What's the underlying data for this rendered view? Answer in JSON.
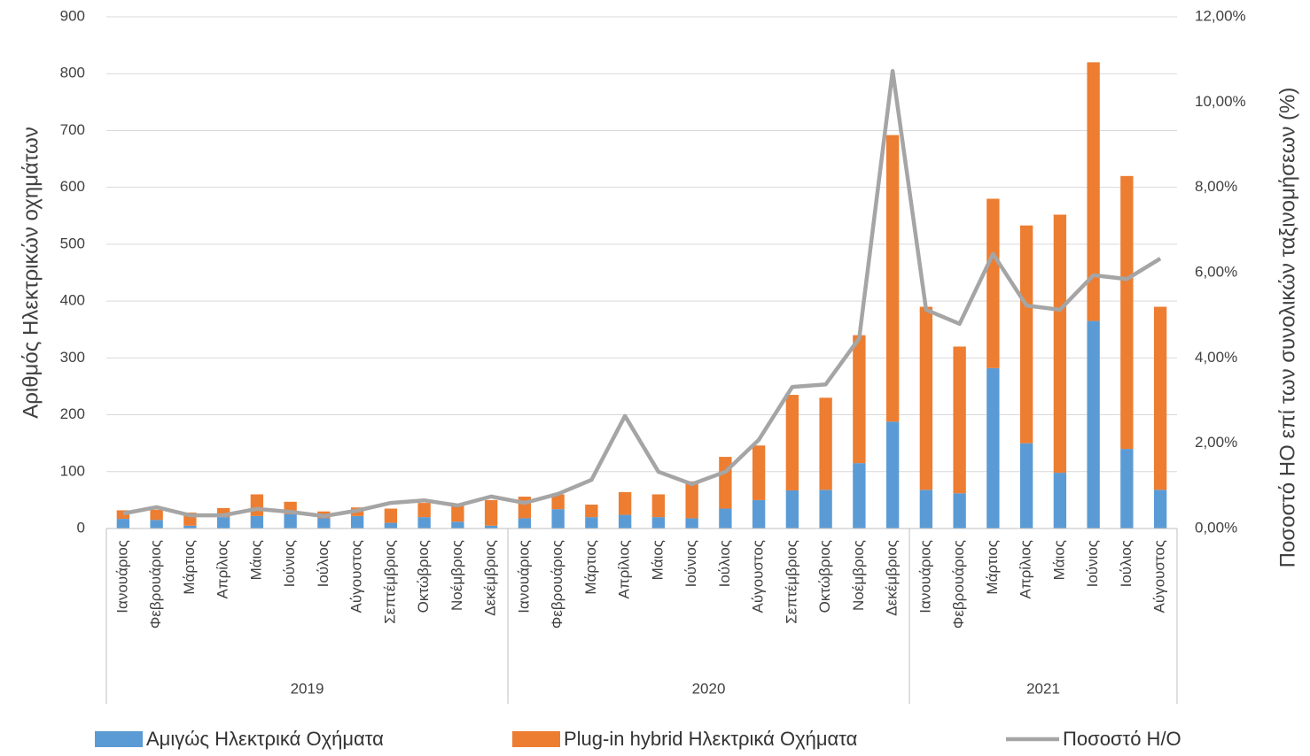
{
  "chart_data": {
    "type": "bar-line",
    "y_label": "Αριθμός Ηλεκτρικών οχημάτων",
    "y2_label": "Ποσοστό ΗΟ επί των συνολικών ταξινομήσεων (%)",
    "groups": [
      {
        "label": "2019",
        "categories": [
          "Ιανουάριος",
          "Φεβρουάριος",
          "Μάρτιος",
          "Απρίλιος",
          "Μάιος",
          "Ιούνιος",
          "Ιούλιος",
          "Αύγουστος",
          "Σεπτέμβριος",
          "Οκτώβριος",
          "Νοέμβριος",
          "Δεκέμβριος"
        ]
      },
      {
        "label": "2020",
        "categories": [
          "Ιανουάριος",
          "Φεβρουάριος",
          "Μάρτιος",
          "Απρίλιος",
          "Μάιος",
          "Ιούνιος",
          "Ιούλιος",
          "Αύγουστος",
          "Σεπτέμβριος",
          "Οκτώβριος",
          "Νοέμβριος",
          "Δεκέμβριος"
        ]
      },
      {
        "label": "2021",
        "categories": [
          "Ιανουάριος",
          "Φεβρουάριος",
          "Μάρτιος",
          "Απρίλιος",
          "Μάιος",
          "Ιούνιος",
          "Ιούλιος",
          "Αύγουστος"
        ]
      }
    ],
    "series": [
      {
        "name": "Αμιγώς Ηλεκτρικά Οχήματα",
        "type": "bar",
        "color": "#5b9bd5",
        "values": [
          17,
          15,
          5,
          20,
          22,
          25,
          18,
          22,
          10,
          20,
          12,
          5,
          18,
          34,
          20,
          24,
          20,
          18,
          35,
          50,
          67,
          68,
          115,
          188,
          68,
          62,
          282,
          150,
          98,
          365,
          140,
          68
        ]
      },
      {
        "name": "Plug-in hybrid Ηλεκτρικά Οχήματα",
        "type": "bar",
        "color": "#ed7d31",
        "values": [
          15,
          18,
          23,
          16,
          38,
          22,
          12,
          15,
          25,
          25,
          28,
          45,
          38,
          26,
          22,
          40,
          40,
          65,
          91,
          96,
          168,
          162,
          225,
          504,
          322,
          258,
          298,
          383,
          454,
          455,
          480,
          322
        ]
      },
      {
        "name": "Ποσοστό Η/Ο",
        "type": "line",
        "axis": "y2",
        "color": "#a5a5a5",
        "values": [
          0.35,
          0.5,
          0.31,
          0.31,
          0.46,
          0.39,
          0.29,
          0.42,
          0.6,
          0.66,
          0.54,
          0.75,
          0.6,
          0.81,
          1.14,
          2.64,
          1.33,
          1.04,
          1.33,
          2.08,
          3.32,
          3.38,
          4.46,
          10.73,
          5.13,
          4.8,
          6.44,
          5.23,
          5.13,
          5.94,
          5.85,
          6.33
        ]
      }
    ],
    "ylim": [
      0,
      900
    ],
    "yticks": [
      0,
      100,
      200,
      300,
      400,
      500,
      600,
      700,
      800,
      900
    ],
    "y2lim": [
      0,
      12
    ],
    "y2ticks": [
      {
        "value": 0,
        "label": "0,00%"
      },
      {
        "value": 2,
        "label": "2,00%"
      },
      {
        "value": 4,
        "label": "4,00%"
      },
      {
        "value": 6,
        "label": "6,00%"
      },
      {
        "value": 8,
        "label": "8,00%"
      },
      {
        "value": 10,
        "label": "10,00%"
      },
      {
        "value": 12,
        "label": "12,00%"
      }
    ],
    "grid": true
  }
}
